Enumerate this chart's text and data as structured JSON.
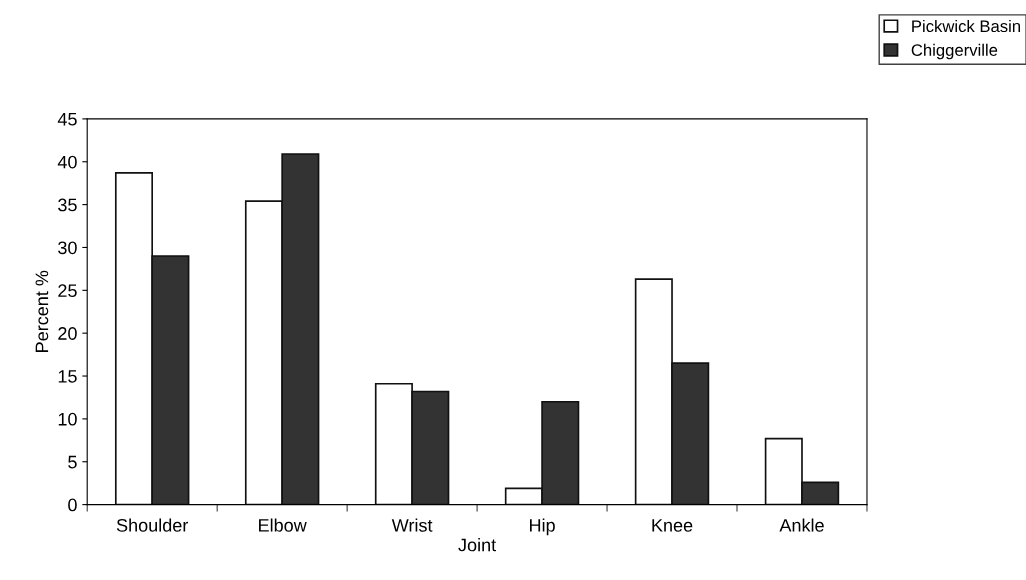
{
  "chart_data": {
    "type": "bar",
    "xlabel": "Joint",
    "ylabel": "Percent %",
    "categories": [
      "Shoulder",
      "Elbow",
      "Wrist",
      "Hip",
      "Knee",
      "Ankle"
    ],
    "series": [
      {
        "name": "Pickwick Basin",
        "color": "#ffffff",
        "values": [
          38.7,
          35.4,
          14.1,
          1.9,
          26.3,
          7.7
        ]
      },
      {
        "name": "Chiggerville",
        "color": "#333333",
        "values": [
          29,
          40.9,
          13.2,
          12,
          16.5,
          2.6
        ]
      }
    ],
    "ylim": [
      0,
      45
    ],
    "yticks": [
      0,
      5,
      10,
      15,
      20,
      25,
      30,
      35,
      40,
      45
    ],
    "grid": false,
    "legend": "top right"
  }
}
